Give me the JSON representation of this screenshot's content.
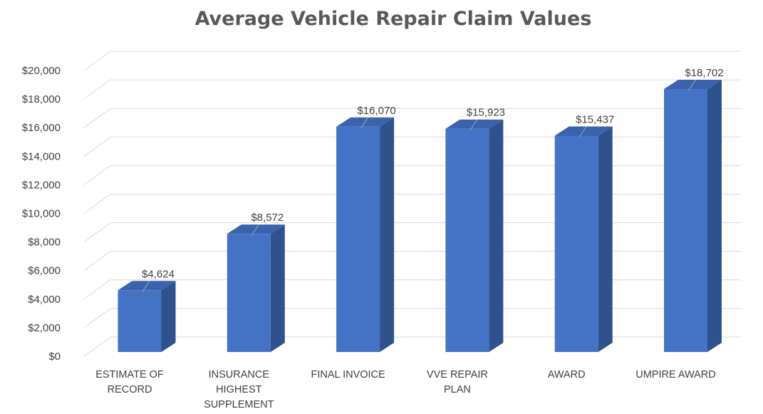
{
  "chart_data": {
    "type": "bar",
    "title": "Average Vehicle Repair Claim Values",
    "xlabel": "",
    "ylabel": "",
    "categories": [
      "ESTIMATE OF RECORD",
      "INSURANCE HIGHEST SUPPLEMENT",
      "FINAL INVOICE",
      "VVE REPAIR PLAN",
      "AWARD",
      "UMPIRE AWARD"
    ],
    "category_lines": [
      [
        "ESTIMATE OF",
        "RECORD"
      ],
      [
        "INSURANCE",
        "HIGHEST",
        "SUPPLEMENT"
      ],
      [
        "FINAL INVOICE"
      ],
      [
        "VVE REPAIR",
        "PLAN"
      ],
      [
        "AWARD"
      ],
      [
        "UMPIRE AWARD"
      ]
    ],
    "values": [
      4624,
      8572,
      16070,
      15923,
      15437,
      18702
    ],
    "data_labels": [
      "$4,624",
      "$8,572",
      "$16,070",
      "$15,923",
      "$15,437",
      "$18,702"
    ],
    "ylim": [
      0,
      20000
    ],
    "y_ticks": [
      0,
      2000,
      4000,
      6000,
      8000,
      10000,
      12000,
      14000,
      16000,
      18000,
      20000
    ],
    "y_tick_labels": [
      "$0",
      "$2,000",
      "$4,000",
      "$6,000",
      "$8,000",
      "$10,000",
      "$12,000",
      "$14,000",
      "$16,000",
      "$18,000",
      "$20,000"
    ],
    "grid": true,
    "legend": "none",
    "style": "3d-column",
    "colors": {
      "bar_front": "#4472c4",
      "bar_side": "#2f528f",
      "bar_top": "#3a62ad",
      "grid": "#d9d9d9",
      "text": "#404040",
      "title": "#595959"
    }
  }
}
